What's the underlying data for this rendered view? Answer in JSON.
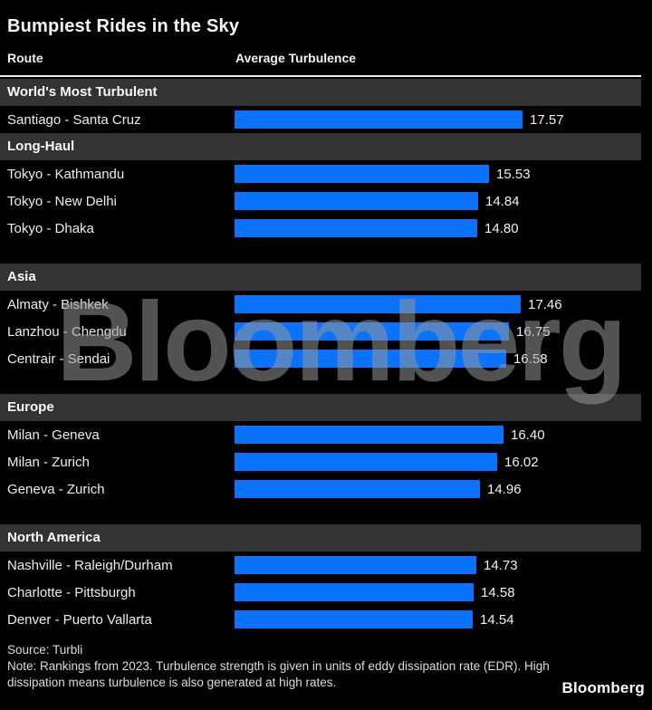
{
  "title": "Bumpiest Rides in the Sky",
  "columns": {
    "route": "Route",
    "value": "Average Turbulence"
  },
  "watermark": "Bloomberg",
  "brand": "Bloomberg",
  "footer": {
    "source": "Source: Turbli",
    "note": "Note: Rankings from 2023. Turbulence strength is given in units of eddy dissipation rate (EDR). High dissipation means turbulence is also generated at high rates."
  },
  "colors": {
    "background": "#000000",
    "bar": "#0b72fa",
    "section_bg": "#333333",
    "text": "#f2f2f2"
  },
  "chart_data": {
    "type": "bar",
    "orientation": "horizontal",
    "title": "Bumpiest Rides in the Sky",
    "value_axis_label": "Average Turbulence",
    "unit": "eddy dissipation rate (EDR)",
    "xlim": [
      0,
      17.57
    ],
    "grid": false,
    "legend": false,
    "sections": [
      {
        "label": "World's Most Turbulent",
        "rows": [
          {
            "route": "Santiago - Santa Cruz",
            "value": 17.57,
            "label": "17.57"
          }
        ]
      },
      {
        "label": "Long-Haul",
        "rows": [
          {
            "route": "Tokyo - Kathmandu",
            "value": 15.53,
            "label": "15.53"
          },
          {
            "route": "Tokyo - New Delhi",
            "value": 14.84,
            "label": "14.84"
          },
          {
            "route": "Tokyo - Dhaka",
            "value": 14.8,
            "label": "14.80"
          }
        ]
      },
      {
        "label": "Asia",
        "rows": [
          {
            "route": "Almaty - Bishkek",
            "value": 17.46,
            "label": "17.46"
          },
          {
            "route": "Lanzhou - Chengdu",
            "value": 16.75,
            "label": "16.75"
          },
          {
            "route": "Centrair - Sendai",
            "value": 16.58,
            "label": "16.58"
          }
        ]
      },
      {
        "label": "Europe",
        "rows": [
          {
            "route": "Milan - Geneva",
            "value": 16.4,
            "label": "16.40"
          },
          {
            "route": "Milan - Zurich",
            "value": 16.02,
            "label": "16.02"
          },
          {
            "route": "Geneva - Zurich",
            "value": 14.96,
            "label": "14.96"
          }
        ]
      },
      {
        "label": "North America",
        "rows": [
          {
            "route": "Nashville - Raleigh/Durham",
            "value": 14.73,
            "label": "14.73"
          },
          {
            "route": "Charlotte - Pittsburgh",
            "value": 14.58,
            "label": "14.58"
          },
          {
            "route": "Denver - Puerto Vallarta",
            "value": 14.54,
            "label": "14.54"
          }
        ]
      }
    ]
  }
}
